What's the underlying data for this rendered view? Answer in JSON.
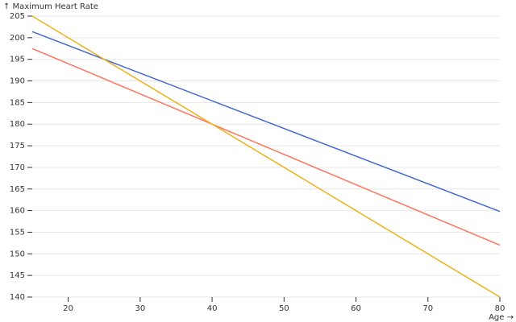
{
  "chart_data": {
    "type": "line",
    "y_label": "↑ Maximum Heart Rate",
    "x_label": "Age →",
    "x": [
      15,
      80
    ],
    "series": [
      {
        "color": "#4269d0",
        "values": [
          201.4,
          159.8
        ]
      },
      {
        "color": "#ff725c",
        "values": [
          197.5,
          152
        ]
      },
      {
        "color": "#efb118",
        "values": [
          205,
          140
        ]
      }
    ],
    "xlim": [
      15,
      80
    ],
    "xticks": [
      20,
      30,
      40,
      50,
      60,
      70,
      80
    ],
    "ylim": [
      140,
      205
    ],
    "yticks": [
      140,
      145,
      150,
      155,
      160,
      165,
      170,
      175,
      180,
      185,
      190,
      195,
      200,
      205
    ],
    "grid": true
  }
}
